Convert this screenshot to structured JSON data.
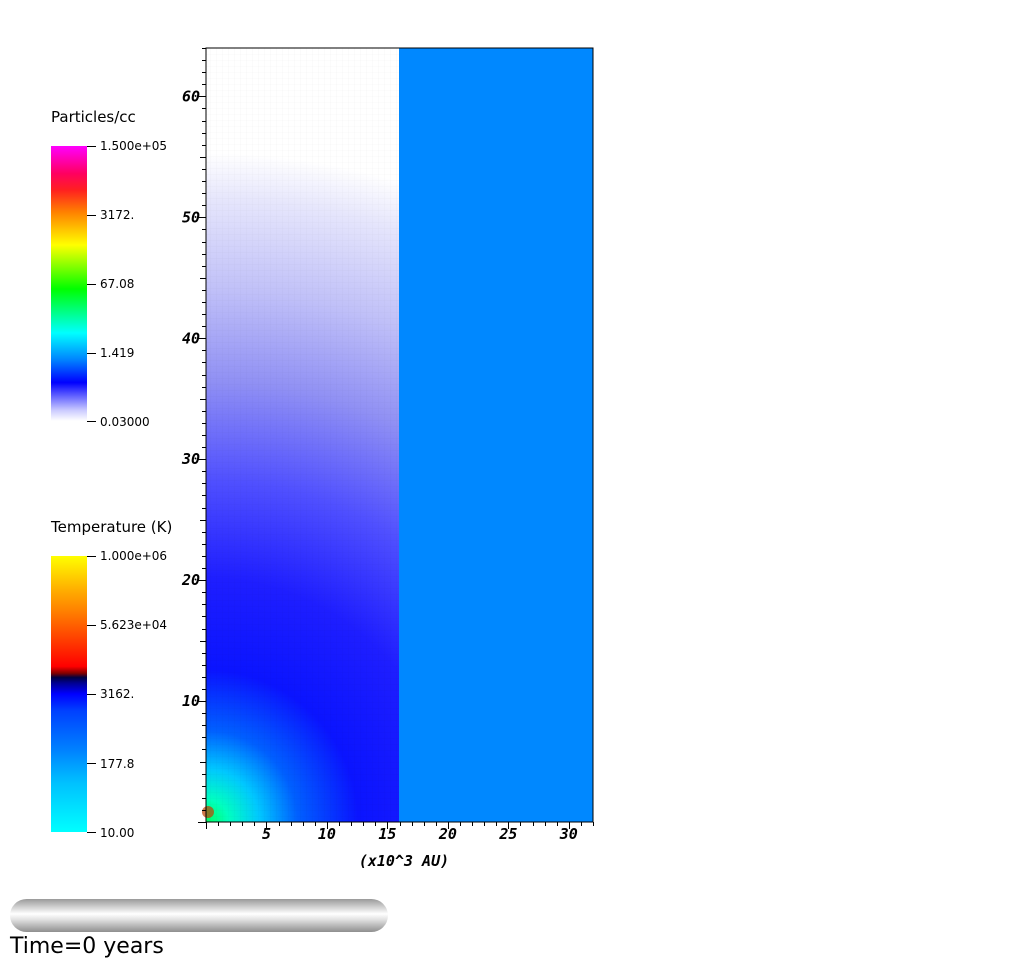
{
  "chart_data": {
    "type": "heatmap",
    "title": "",
    "xlabel": "(x10^3 AU)",
    "ylabel": "",
    "xlim": [
      0,
      32
    ],
    "ylim": [
      0,
      64
    ],
    "x_ticks": [
      5,
      10,
      15,
      20,
      25,
      30
    ],
    "y_ticks": [
      10,
      20,
      30,
      40,
      50,
      60
    ],
    "left_panel": {
      "field": "Particles/cc",
      "x_range": [
        0,
        16
      ],
      "description_values": "density falls off radially from origin: cyan/green near (0,0), blue to ~25, light blue/white above ~50"
    },
    "right_panel": {
      "field": "Temperature (K)",
      "x_range": [
        16,
        32
      ],
      "uniform_color": "#0088ff"
    },
    "colorbars": [
      {
        "title": "Particles/cc",
        "labels": [
          "1.500e+05",
          "3172.",
          "67.08",
          "1.419",
          "0.03000"
        ]
      },
      {
        "title": "Temperature (K)",
        "labels": [
          "1.000e+06",
          "5.623e+04",
          "3162.",
          "177.8",
          "10.00"
        ]
      }
    ]
  },
  "time_label": "Time=0 years",
  "progress": 0,
  "colors": {
    "temperature_fill": "#0088ff",
    "density_far": "#ffffff",
    "density_mid": "#2a2aff",
    "density_core": "#00ffb0"
  }
}
